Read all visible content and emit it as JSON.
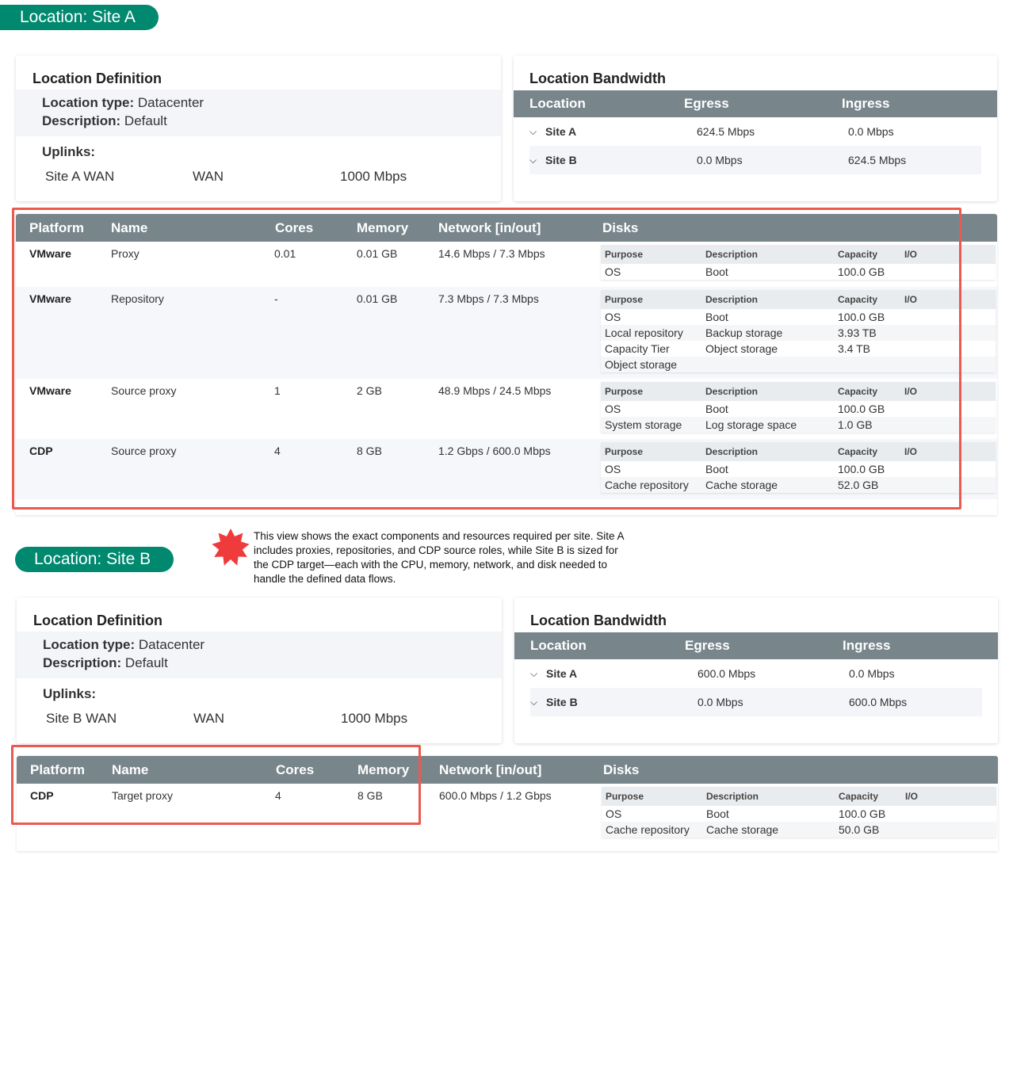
{
  "sites": [
    {
      "badge": "Location: Site A",
      "definition": {
        "title": "Location Definition",
        "type_label": "Location type:",
        "type_value": "Datacenter",
        "desc_label": "Description:",
        "desc_value": "Default",
        "uplinks_label": "Uplinks:",
        "uplink": {
          "name": "Site A WAN",
          "type": "WAN",
          "speed": "1000 Mbps"
        }
      },
      "bandwidth": {
        "title": "Location Bandwidth",
        "headers": [
          "Location",
          "Egress",
          "Ingress"
        ],
        "rows": [
          {
            "location": "Site A",
            "egress": "624.5 Mbps",
            "ingress": "0.0 Mbps"
          },
          {
            "location": "Site B",
            "egress": "0.0 Mbps",
            "ingress": "624.5 Mbps"
          }
        ]
      },
      "components": {
        "headers": [
          "Platform",
          "Name",
          "Cores",
          "Memory",
          "Network [in/out]",
          "Disks"
        ],
        "disk_headers": [
          "Purpose",
          "Description",
          "Capacity",
          "I/O"
        ],
        "rows": [
          {
            "platform": "VMware",
            "name": "Proxy",
            "cores": "0.01",
            "memory": "0.01 GB",
            "network": "14.6 Mbps / 7.3 Mbps",
            "disks": [
              [
                "OS",
                "Boot",
                "100.0 GB"
              ]
            ]
          },
          {
            "platform": "VMware",
            "name": "Repository",
            "cores": "-",
            "memory": "0.01 GB",
            "network": "7.3 Mbps / 7.3 Mbps",
            "disks": [
              [
                "OS",
                "Boot",
                "100.0 GB"
              ],
              [
                "Local repository",
                "Backup storage",
                "3.93 TB"
              ],
              [
                "Capacity Tier",
                "Object storage",
                "3.4 TB"
              ],
              [
                "Object storage",
                "",
                ""
              ]
            ]
          },
          {
            "platform": "VMware",
            "name": "Source proxy",
            "cores": "1",
            "memory": "2 GB",
            "network": "48.9 Mbps / 24.5 Mbps",
            "disks": [
              [
                "OS",
                "Boot",
                "100.0 GB"
              ],
              [
                "System storage",
                "Log storage space",
                "1.0 GB"
              ]
            ]
          },
          {
            "platform": "CDP",
            "name": "Source proxy",
            "cores": "4",
            "memory": "8 GB",
            "network": "1.2 Gbps / 600.0 Mbps",
            "disks": [
              [
                "OS",
                "Boot",
                "100.0 GB"
              ],
              [
                "Cache repository",
                "Cache storage",
                "52.0 GB"
              ]
            ]
          }
        ]
      }
    },
    {
      "badge": "Location: Site B",
      "definition": {
        "title": "Location Definition",
        "type_label": "Location type:",
        "type_value": "Datacenter",
        "desc_label": "Description:",
        "desc_value": "Default",
        "uplinks_label": "Uplinks:",
        "uplink": {
          "name": "Site B WAN",
          "type": "WAN",
          "speed": "1000 Mbps"
        }
      },
      "bandwidth": {
        "title": "Location Bandwidth",
        "headers": [
          "Location",
          "Egress",
          "Ingress"
        ],
        "rows": [
          {
            "location": "Site A",
            "egress": "600.0 Mbps",
            "ingress": "0.0 Mbps"
          },
          {
            "location": "Site B",
            "egress": "0.0 Mbps",
            "ingress": "600.0 Mbps"
          }
        ]
      },
      "components": {
        "headers": [
          "Platform",
          "Name",
          "Cores",
          "Memory",
          "Network [in/out]",
          "Disks"
        ],
        "disk_headers": [
          "Purpose",
          "Description",
          "Capacity",
          "I/O"
        ],
        "rows": [
          {
            "platform": "CDP",
            "name": "Target proxy",
            "cores": "4",
            "memory": "8 GB",
            "network": "600.0 Mbps / 1.2 Gbps",
            "disks": [
              [
                "OS",
                "Boot",
                "100.0 GB"
              ],
              [
                "Cache repository",
                "Cache storage",
                "50.0 GB"
              ]
            ]
          }
        ]
      }
    }
  ],
  "annotation": {
    "icon": "starburst-icon",
    "color": "#ef3b3b",
    "text": "This view shows the exact components and resources required per site. Site A includes proxies, repositories, and CDP source roles, while Site B is sized for the CDP target—each with the CPU, memory, network, and disk needed to handle the defined data flows."
  },
  "colors": {
    "badge": "#00896f",
    "table_header": "#78868c",
    "highlight": "#ea5a4e"
  }
}
